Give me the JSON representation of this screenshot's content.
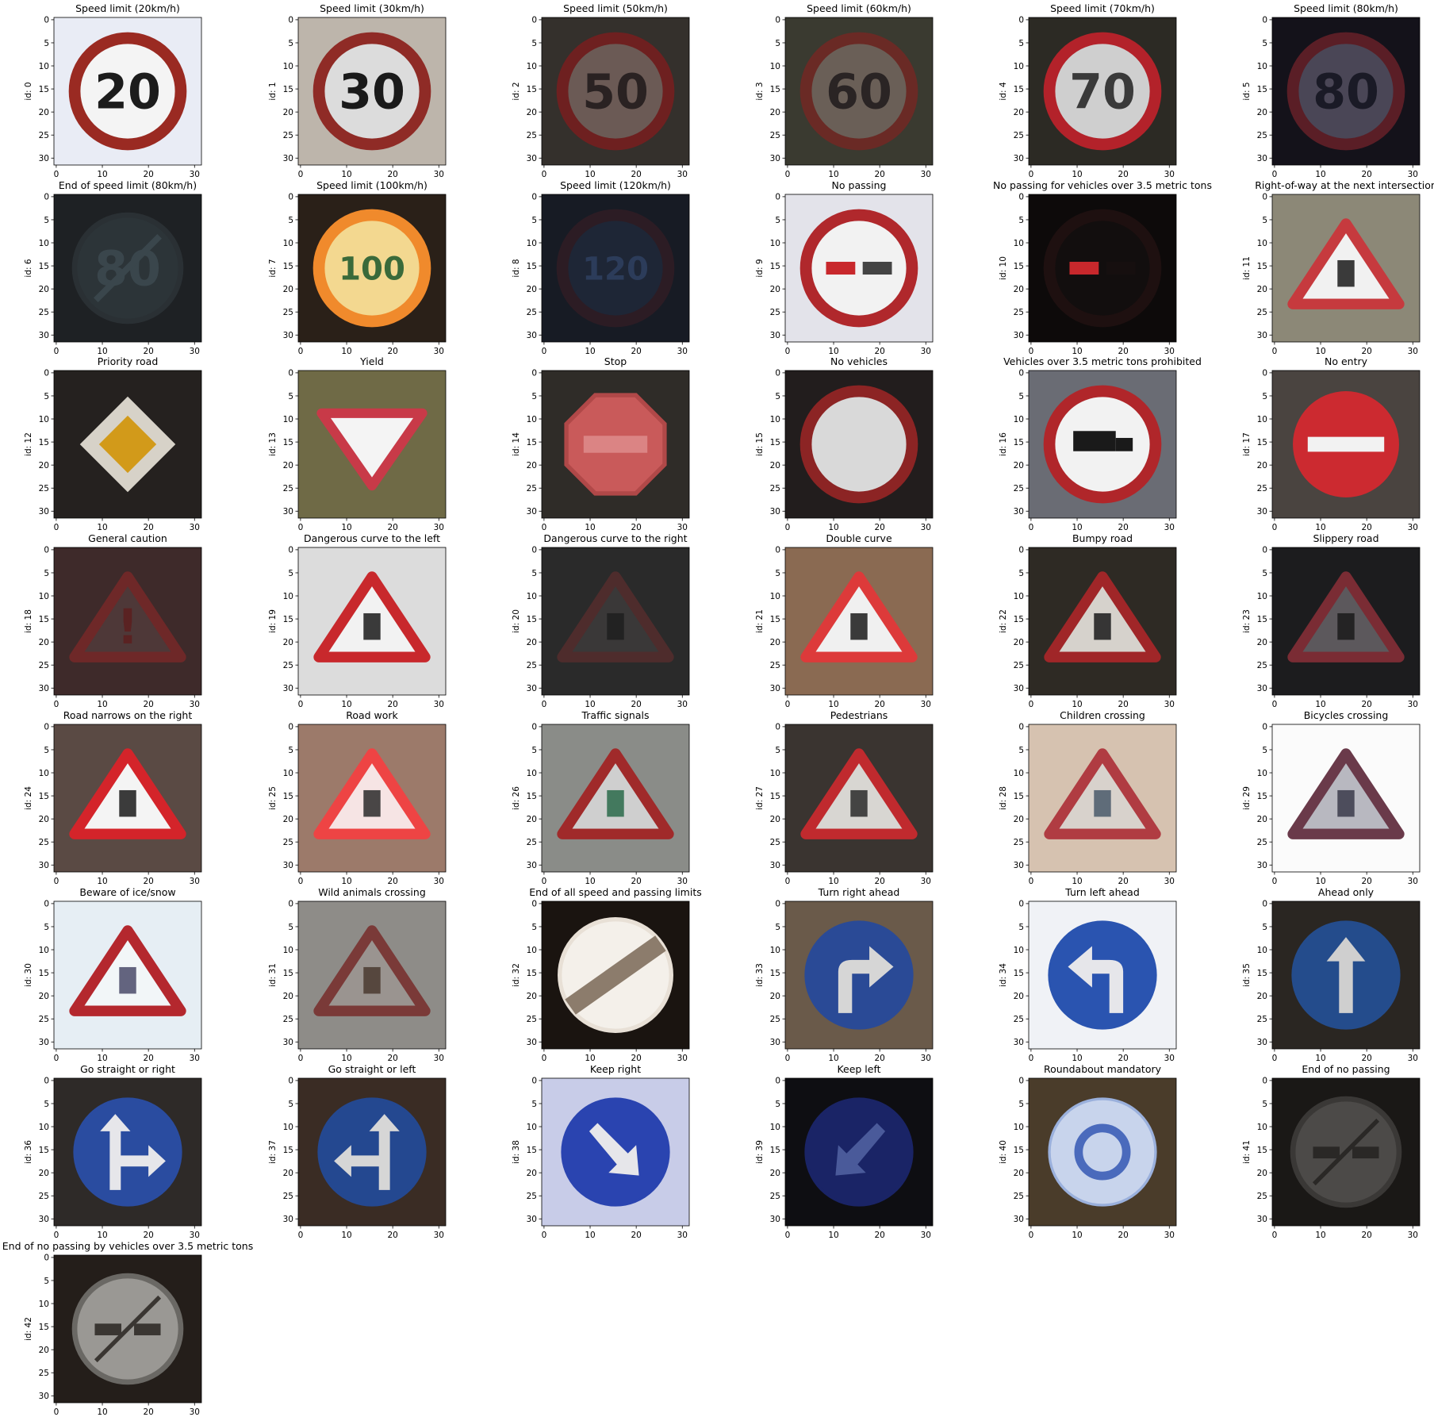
{
  "axis": {
    "xticks": [
      0,
      10,
      20,
      30
    ],
    "yticks": [
      0,
      5,
      10,
      15,
      20,
      25,
      30
    ],
    "ylabel_prefix": "id: "
  },
  "signs": [
    {
      "id": 0,
      "title": "Speed limit (20km/h)",
      "kind": "speed",
      "text": "20",
      "bg": "#e9ecf5",
      "disc": "#f4f4f4",
      "ring": "#9a2a22",
      "fg": "#1c1c1c"
    },
    {
      "id": 1,
      "title": "Speed limit (30km/h)",
      "kind": "speed",
      "text": "30",
      "bg": "#bdb5ab",
      "disc": "#dcdcdc",
      "ring": "#8f2b26",
      "fg": "#1a1a1a"
    },
    {
      "id": 2,
      "title": "Speed limit (50km/h)",
      "kind": "speed",
      "text": "50",
      "bg": "#34302c",
      "disc": "#6b5a55",
      "ring": "#6e2020",
      "fg": "#2a2222"
    },
    {
      "id": 3,
      "title": "Speed limit (60km/h)",
      "kind": "speed",
      "text": "60",
      "bg": "#3a3a30",
      "disc": "#6a5f57",
      "ring": "#6a2a25",
      "fg": "#2a2424"
    },
    {
      "id": 4,
      "title": "Speed limit (70km/h)",
      "kind": "speed",
      "text": "70",
      "bg": "#2c2a24",
      "disc": "#cfcfcf",
      "ring": "#b3222a",
      "fg": "#3a3a3a"
    },
    {
      "id": 5,
      "title": "Speed limit (80km/h)",
      "kind": "speed",
      "text": "80",
      "bg": "#14121a",
      "disc": "#4a4656",
      "ring": "#5a1e26",
      "fg": "#1a1a26"
    },
    {
      "id": 6,
      "title": "End of speed limit (80km/h)",
      "kind": "endspeed",
      "text": "80",
      "bg": "#1e2124",
      "disc": "#2c3438",
      "ring": "#2a3034",
      "fg": "#3a464c"
    },
    {
      "id": 7,
      "title": "Speed limit (100km/h)",
      "kind": "speed",
      "text": "100",
      "bg": "#2a2018",
      "disc": "#f3d890",
      "ring": "#f08a2c",
      "fg": "#3a6a3a"
    },
    {
      "id": 8,
      "title": "Speed limit (120km/h)",
      "kind": "speed",
      "text": "120",
      "bg": "#171b24",
      "disc": "#1e2636",
      "ring": "#2c1c24",
      "fg": "#2c3c5a"
    },
    {
      "id": 9,
      "title": "No passing",
      "kind": "nopass",
      "text": "",
      "bg": "#e3e3ea",
      "disc": "#f2f2f2",
      "ring": "#b0282c",
      "fg": "#444444"
    },
    {
      "id": 10,
      "title": "No passing for vehicles over 3.5 metric tons",
      "kind": "nopass",
      "text": "",
      "bg": "#0d0a0a",
      "disc": "#120e0e",
      "ring": "#1e1010",
      "fg": "#160f0f"
    },
    {
      "id": 11,
      "title": "Right-of-way at the next intersection",
      "kind": "triangle",
      "text": "",
      "bg": "#8c8877",
      "disc": "#f1f1f1",
      "ring": "#c63a3e",
      "fg": "#1a1a1a"
    },
    {
      "id": 12,
      "title": "Priority road",
      "kind": "priority",
      "text": "",
      "bg": "#25211f",
      "disc": "#d7d2c8",
      "ring": "#d7d2c8",
      "fg": "#d29a1a"
    },
    {
      "id": 13,
      "title": "Yield",
      "kind": "yield",
      "text": "",
      "bg": "#6f6a46",
      "disc": "#f4f4f4",
      "ring": "#c83a48",
      "fg": "#f4f4f4"
    },
    {
      "id": 14,
      "title": "Stop",
      "kind": "stop",
      "text": "",
      "bg": "#2f2c28",
      "disc": "#c95a5a",
      "ring": "#b04848",
      "fg": "#e8a0a0"
    },
    {
      "id": 15,
      "title": "No vehicles",
      "kind": "ring",
      "text": "",
      "bg": "#221d1d",
      "disc": "#d9d9d9",
      "ring": "#8c2424",
      "fg": "#d9d9d9"
    },
    {
      "id": 16,
      "title": "Vehicles over 3.5 metric tons prohibited",
      "kind": "truck",
      "text": "",
      "bg": "#6a6c74",
      "disc": "#f2f2f2",
      "ring": "#b0262a",
      "fg": "#1a1a1a"
    },
    {
      "id": 17,
      "title": "No entry",
      "kind": "noentry",
      "text": "",
      "bg": "#4a4440",
      "disc": "#cc2a30",
      "ring": "#cc2a30",
      "fg": "#f2f2f2"
    },
    {
      "id": 18,
      "title": "General caution",
      "kind": "triangle",
      "text": "!",
      "bg": "#3e2a2a",
      "disc": "#4e3838",
      "ring": "#6e2828",
      "fg": "#5a2222"
    },
    {
      "id": 19,
      "title": "Dangerous curve to the left",
      "kind": "triangle",
      "text": "",
      "bg": "#dcdcdc",
      "disc": "#f2f2f2",
      "ring": "#c8282c",
      "fg": "#1a1a1a"
    },
    {
      "id": 20,
      "title": "Dangerous curve to the right",
      "kind": "triangle",
      "text": "",
      "bg": "#2a2a2a",
      "disc": "#3a3838",
      "ring": "#4e2c2c",
      "fg": "#1e1e1e"
    },
    {
      "id": 21,
      "title": "Double curve",
      "kind": "triangle",
      "text": "",
      "bg": "#8a6a52",
      "disc": "#f0f0f0",
      "ring": "#dd3a3a",
      "fg": "#1a1a1a"
    },
    {
      "id": 22,
      "title": "Bumpy road",
      "kind": "triangle",
      "text": "",
      "bg": "#2e2a24",
      "disc": "#d6d2cc",
      "ring": "#a02628",
      "fg": "#1a1a1a"
    },
    {
      "id": 23,
      "title": "Slippery road",
      "kind": "triangle",
      "text": "",
      "bg": "#1c1c1e",
      "disc": "#5c585c",
      "ring": "#7a2c34",
      "fg": "#1a1a1a"
    },
    {
      "id": 24,
      "title": "Road narrows on the right",
      "kind": "triangle",
      "text": "",
      "bg": "#5a4a44",
      "disc": "#f4f4f4",
      "ring": "#d4242a",
      "fg": "#1a1a1a"
    },
    {
      "id": 25,
      "title": "Road work",
      "kind": "triangle",
      "text": "",
      "bg": "#9c7a6a",
      "disc": "#f6e4e4",
      "ring": "#ee4444",
      "fg": "#2a2a2a"
    },
    {
      "id": 26,
      "title": "Traffic signals",
      "kind": "triangle",
      "text": "",
      "bg": "#8a8c88",
      "disc": "#cfcfcf",
      "ring": "#a02a2a",
      "fg": "#2a6a4a"
    },
    {
      "id": 27,
      "title": "Pedestrians",
      "kind": "triangle",
      "text": "",
      "bg": "#3a3430",
      "disc": "#d8d6d2",
      "ring": "#c02a2e",
      "fg": "#2a2a2a"
    },
    {
      "id": 28,
      "title": "Children crossing",
      "kind": "triangle",
      "text": "",
      "bg": "#d6c2b0",
      "disc": "#d8d2cc",
      "ring": "#b03c42",
      "fg": "#4a5a6a"
    },
    {
      "id": 29,
      "title": "Bicycles crossing",
      "kind": "triangle",
      "text": "",
      "bg": "#fbfbfb",
      "disc": "#b8b8c0",
      "ring": "#6a3a4a",
      "fg": "#3a3a4a"
    },
    {
      "id": 30,
      "title": "Beware of ice/snow",
      "kind": "triangle",
      "text": "",
      "bg": "#e6eef4",
      "disc": "#f2f6f8",
      "ring": "#b4282e",
      "fg": "#4a4a6a"
    },
    {
      "id": 31,
      "title": "Wild animals crossing",
      "kind": "triangle",
      "text": "",
      "bg": "#8e8c88",
      "disc": "#9a9490",
      "ring": "#7a3a38",
      "fg": "#4a3a30"
    },
    {
      "id": 32,
      "title": "End of all speed and passing limits",
      "kind": "endall",
      "text": "",
      "bg": "#1a1410",
      "disc": "#f4f0ea",
      "ring": "#e8e0d6",
      "fg": "#8c7c6c"
    },
    {
      "id": 33,
      "title": "Turn right ahead",
      "kind": "blue",
      "text": "",
      "bg": "#6a5a4a",
      "disc": "#2a4a96",
      "ring": "#2a4a96",
      "fg": "#d6d6d6",
      "arrow": "right"
    },
    {
      "id": 34,
      "title": "Turn left ahead",
      "kind": "blue",
      "text": "",
      "bg": "#f0f2f6",
      "disc": "#2a54b0",
      "ring": "#2a54b0",
      "fg": "#e6e6ea",
      "arrow": "left"
    },
    {
      "id": 35,
      "title": "Ahead only",
      "kind": "blue",
      "text": "",
      "bg": "#2a2622",
      "disc": "#244c8c",
      "ring": "#244c8c",
      "fg": "#cfcfcf",
      "arrow": "up"
    },
    {
      "id": 36,
      "title": "Go straight or right",
      "kind": "blue",
      "text": "",
      "bg": "#2e2a28",
      "disc": "#2a4ca0",
      "ring": "#2a4ca0",
      "fg": "#e6e6ea",
      "arrow": "upright"
    },
    {
      "id": 37,
      "title": "Go straight or left",
      "kind": "blue",
      "text": "",
      "bg": "#3a2c24",
      "disc": "#244890",
      "ring": "#244890",
      "fg": "#d6d6d6",
      "arrow": "upleft"
    },
    {
      "id": 38,
      "title": "Keep right",
      "kind": "blue",
      "text": "",
      "bg": "#c8cce8",
      "disc": "#2a44b0",
      "ring": "#2a44b0",
      "fg": "#e6e6ea",
      "arrow": "downright"
    },
    {
      "id": 39,
      "title": "Keep left",
      "kind": "blue",
      "text": "",
      "bg": "#0e0e12",
      "disc": "#1a2466",
      "ring": "#1a2466",
      "fg": "#4a5a9a",
      "arrow": "downleft"
    },
    {
      "id": 40,
      "title": "Roundabout mandatory",
      "kind": "blue",
      "text": "",
      "bg": "#4a3c2a",
      "disc": "#c8d4ec",
      "ring": "#9ab0dc",
      "fg": "#4a6abc",
      "arrow": "round"
    },
    {
      "id": 41,
      "title": "End of no passing",
      "kind": "endpass",
      "text": "",
      "bg": "#1a1816",
      "disc": "#4c4a48",
      "ring": "#3a3836",
      "fg": "#2a2826"
    },
    {
      "id": 42,
      "title": "End of no passing by vehicles over 3.5 metric tons",
      "kind": "endpass",
      "text": "",
      "bg": "#241e1a",
      "disc": "#9a9894",
      "ring": "#6a6864",
      "fg": "#3a3632"
    }
  ]
}
